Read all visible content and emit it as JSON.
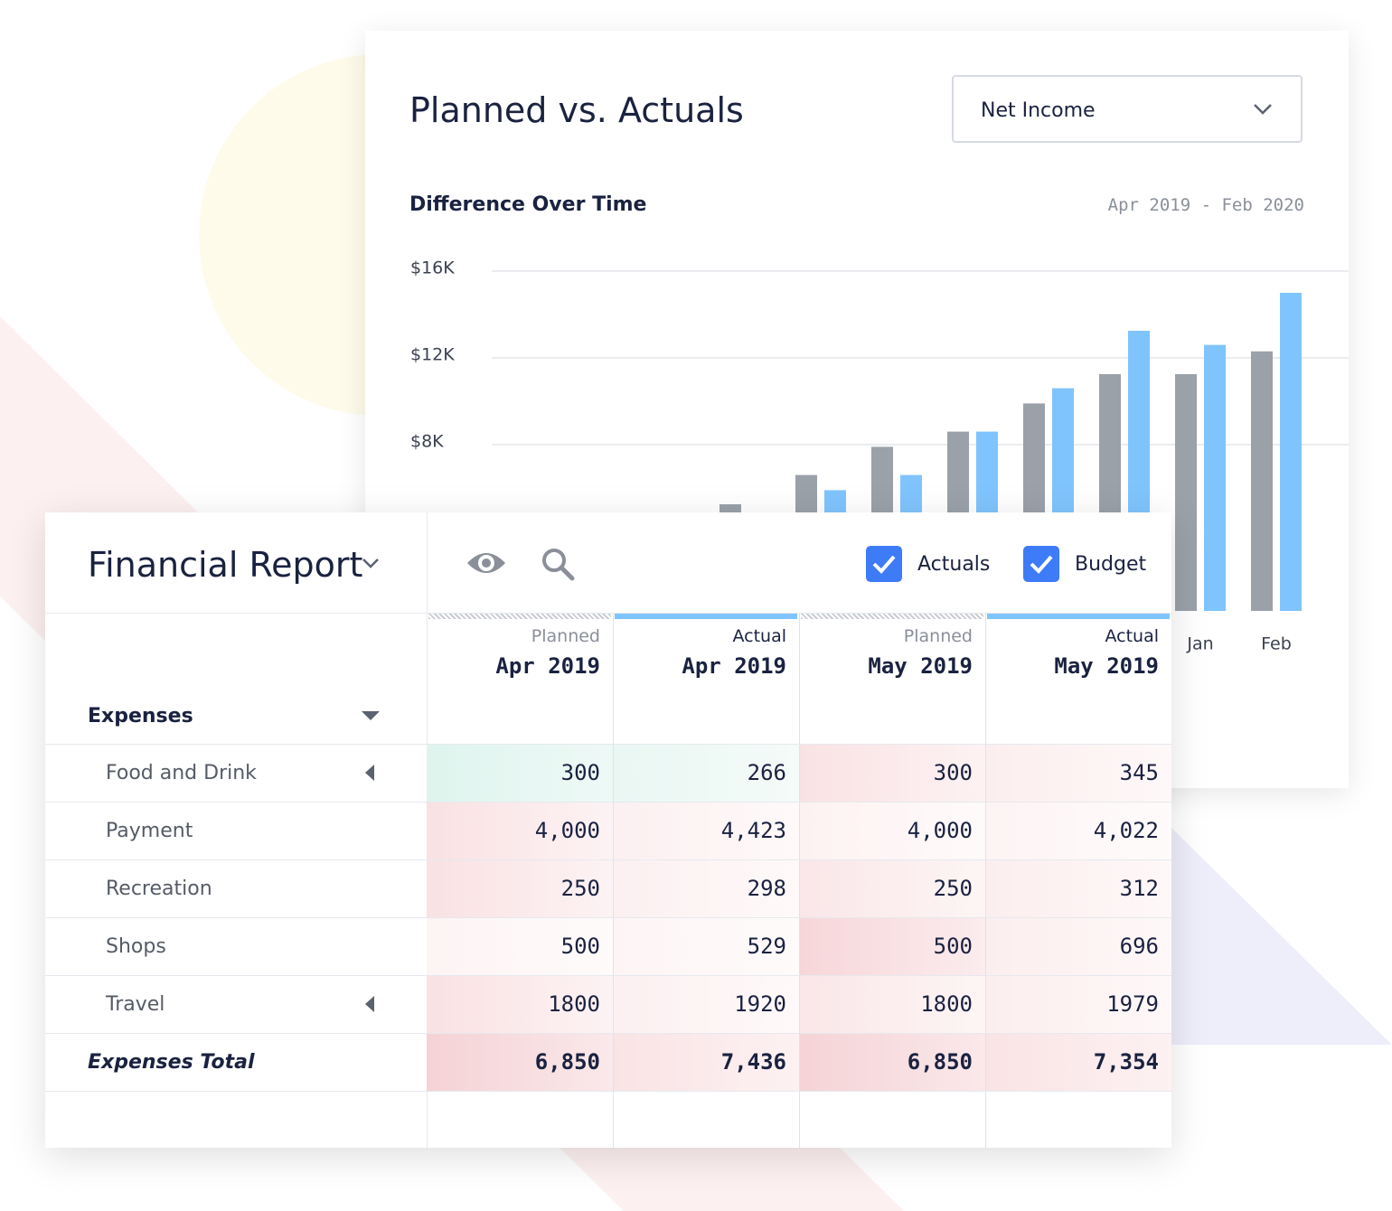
{
  "card": {
    "title": "Planned vs. Actuals",
    "selector": "Net Income"
  },
  "chart_data": {
    "type": "bar",
    "subtitle": "Difference Over Time",
    "date_range": "Apr 2019 - Feb 2020",
    "categories": [
      null,
      null,
      null,
      null,
      null,
      null,
      null,
      null,
      null,
      "Jan",
      "Feb"
    ],
    "series": [
      {
        "color": "#9aa1a9",
        "values": [
          null,
          null,
          null,
          5250,
          6600,
          7900,
          8600,
          9900,
          11250,
          11250,
          12300
        ]
      },
      {
        "color": "#80c4fd",
        "values": [
          null,
          null,
          null,
          null,
          5900,
          6600,
          8600,
          10600,
          13250,
          12600,
          15000
        ]
      }
    ],
    "ylim": [
      0,
      16000
    ],
    "yticks": [
      {
        "value": 8000,
        "label": "$8K"
      },
      {
        "value": 12000,
        "label": "$12K"
      },
      {
        "value": 16000,
        "label": "$16K"
      }
    ],
    "grid": true
  },
  "report": {
    "title": "Financial Report",
    "toggles": [
      "Actuals",
      "Budget"
    ],
    "columns": [
      {
        "kind": "Planned",
        "period": "Apr 2019"
      },
      {
        "kind": "Actual",
        "period": "Apr 2019"
      },
      {
        "kind": "Planned",
        "period": "May 2019"
      },
      {
        "kind": "Actual",
        "period": "May 2019"
      }
    ],
    "group": "Expenses",
    "rows": [
      {
        "name": "Food and Drink",
        "cells": [
          "300",
          "266",
          "300",
          "345"
        ]
      },
      {
        "name": "Payment",
        "cells": [
          "4,000",
          "4,423",
          "4,000",
          "4,022"
        ]
      },
      {
        "name": "Recreation",
        "cells": [
          "250",
          "298",
          "250",
          "312"
        ]
      },
      {
        "name": "Shops",
        "cells": [
          "500",
          "529",
          "500",
          "696"
        ]
      },
      {
        "name": "Travel",
        "cells": [
          "1800",
          "1920",
          "1800",
          "1979"
        ]
      }
    ],
    "total": {
      "name": "Expenses Total",
      "cells": [
        "6,850",
        "7,436",
        "6,850",
        "7,354"
      ]
    }
  }
}
